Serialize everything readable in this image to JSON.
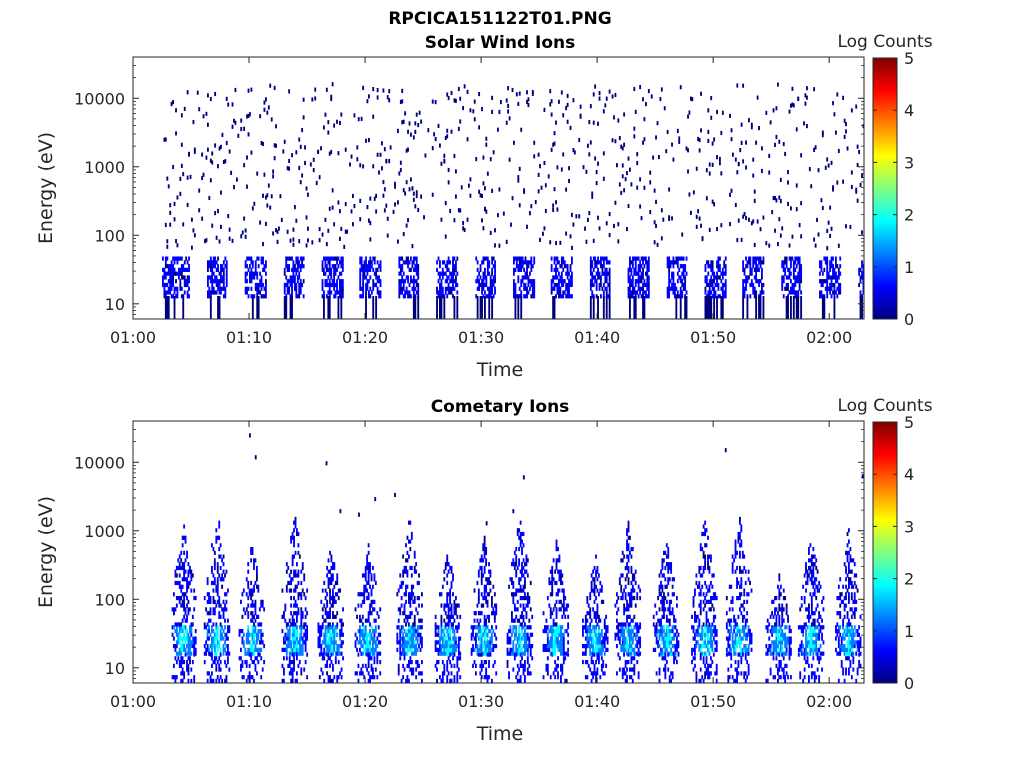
{
  "figure": {
    "title": "RPCICA151122T01.PNG"
  },
  "colorscale": [
    "#00007f",
    "#0000ff",
    "#007fff",
    "#00ffff",
    "#7fff7f",
    "#ffff00",
    "#ff7f00",
    "#ff0000",
    "#7f0000"
  ],
  "chart_data": [
    {
      "type": "heatmap",
      "title": "Solar Wind Ions",
      "xlabel": "Time",
      "ylabel": "Energy (eV)",
      "x_ticks": [
        "01:00",
        "01:10",
        "01:20",
        "01:30",
        "01:40",
        "01:50",
        "02:00"
      ],
      "x_tick_minutes": [
        0,
        10,
        20,
        30,
        40,
        50,
        60
      ],
      "xlim_minutes": [
        0,
        63
      ],
      "data_start_minute": 2.5,
      "y_scale": "log",
      "ylim": [
        6,
        40000
      ],
      "y_ticks": [
        "10",
        "100",
        "1000",
        "10000"
      ],
      "y_tick_values": [
        10,
        100,
        1000,
        10000
      ],
      "colorbar": {
        "label": "Log Counts",
        "range": [
          0,
          5
        ],
        "ticks": [
          "0",
          "1",
          "2",
          "3",
          "4",
          "5"
        ]
      },
      "features": {
        "low_energy_band_eV": [
          12,
          45
        ],
        "band_intensity_log_counts": [
          0.2,
          1.4
        ],
        "high_energy_scatter_eV": [
          60,
          15000
        ],
        "scatter_intensity_log_counts": 0.2,
        "pulse_period_minutes": 3.3
      }
    },
    {
      "type": "heatmap",
      "title": "Cometary Ions",
      "xlabel": "Time",
      "ylabel": "Energy (eV)",
      "x_ticks": [
        "01:00",
        "01:10",
        "01:20",
        "01:30",
        "01:40",
        "01:50",
        "02:00"
      ],
      "x_tick_minutes": [
        0,
        10,
        20,
        30,
        40,
        50,
        60
      ],
      "xlim_minutes": [
        0,
        63
      ],
      "data_start_minute": 3.2,
      "y_scale": "log",
      "ylim": [
        6,
        40000
      ],
      "y_ticks": [
        "10",
        "100",
        "1000",
        "10000"
      ],
      "y_tick_values": [
        10,
        100,
        1000,
        10000
      ],
      "colorbar": {
        "label": "Log Counts",
        "range": [
          0,
          5
        ],
        "ticks": [
          "0",
          "1",
          "2",
          "3",
          "4",
          "5"
        ]
      },
      "features": {
        "burst_centers_minutes": [
          4.3,
          7.2,
          10.2,
          13.9,
          17.0,
          20.2,
          23.8,
          27.1,
          30.2,
          33.3,
          36.4,
          39.8,
          42.6,
          45.9,
          49.2,
          52.2,
          55.6,
          58.4,
          61.6
        ],
        "core_energy_eV": [
          15,
          40
        ],
        "core_peak_log_counts": 2.2,
        "burst_max_energy_eV": [
          150,
          1800
        ],
        "isolated_points": [
          {
            "minute": 10.0,
            "eV": 23000
          },
          {
            "minute": 10.5,
            "eV": 11000
          },
          {
            "minute": 16.6,
            "eV": 9000
          },
          {
            "minute": 17.8,
            "eV": 1800
          },
          {
            "minute": 19.4,
            "eV": 1600
          },
          {
            "minute": 20.8,
            "eV": 2700
          },
          {
            "minute": 22.5,
            "eV": 3100
          },
          {
            "minute": 30.4,
            "eV": 1200
          },
          {
            "minute": 32.7,
            "eV": 1800
          },
          {
            "minute": 33.6,
            "eV": 5600
          },
          {
            "minute": 51.0,
            "eV": 14000
          },
          {
            "minute": 62.8,
            "eV": 5800
          }
        ]
      }
    }
  ]
}
